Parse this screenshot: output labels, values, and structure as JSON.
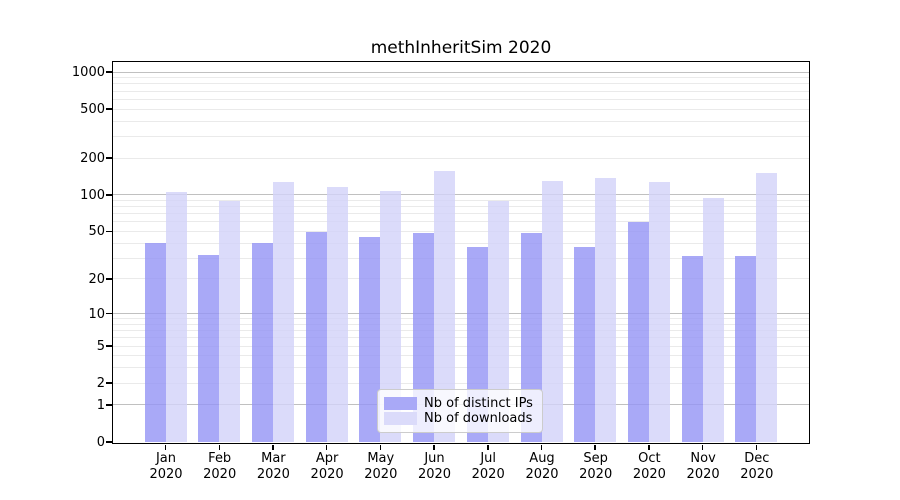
{
  "chart_data": {
    "type": "bar",
    "title": "methInheritSim 2020",
    "categories": [
      "Jan",
      "Feb",
      "Mar",
      "Apr",
      "May",
      "Jun",
      "Jul",
      "Aug",
      "Sep",
      "Oct",
      "Nov",
      "Dec"
    ],
    "category_year": "2020",
    "yscale": "log1p",
    "ylim": [
      0,
      1225
    ],
    "yticks": [
      1000,
      500,
      200,
      100,
      50,
      20,
      10,
      5,
      2,
      1,
      0
    ],
    "grid": true,
    "legend_position": "inside lower center",
    "series": [
      {
        "name": "Nb of distinct IPs",
        "color": "#9494f5",
        "legend_color": "#a9a9f7",
        "values": [
          40,
          32,
          40,
          50,
          45,
          49,
          37,
          49,
          37,
          60,
          31,
          31
        ]
      },
      {
        "name": "Nb of downloads",
        "color": "#d2d2f9",
        "legend_color": "#dbdbfa",
        "values": [
          105,
          90,
          127,
          116,
          107,
          157,
          89,
          130,
          138,
          128,
          95,
          152
        ]
      }
    ]
  },
  "colors": {
    "background": "#ffffff",
    "frame": "#000000",
    "major_grid": "#c0c0c0",
    "minor_grid": "#eaeaea",
    "bar_opacity": 0.8
  }
}
